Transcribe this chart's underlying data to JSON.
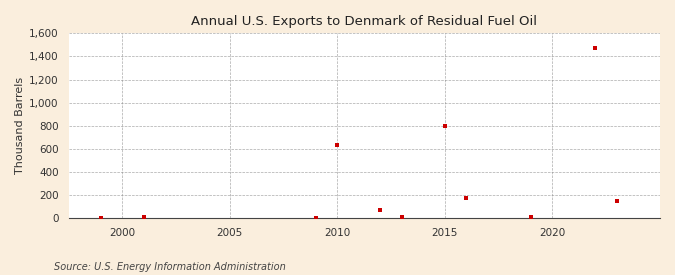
{
  "title": "Annual U.S. Exports to Denmark of Residual Fuel Oil",
  "ylabel": "Thousand Barrels",
  "source": "Source: U.S. Energy Information Administration",
  "background_color": "#faeedd",
  "plot_background_color": "#ffffff",
  "marker_color": "#cc0000",
  "marker_size": 6,
  "xlim": [
    1997.5,
    2025
  ],
  "ylim": [
    0,
    1600
  ],
  "yticks": [
    0,
    200,
    400,
    600,
    800,
    1000,
    1200,
    1400,
    1600
  ],
  "xticks": [
    2000,
    2005,
    2010,
    2015,
    2020
  ],
  "data": {
    "years": [
      1999,
      2001,
      2009,
      2010,
      2012,
      2013,
      2015,
      2016,
      2019,
      2022,
      2023
    ],
    "values": [
      5,
      10,
      5,
      630,
      75,
      8,
      800,
      175,
      10,
      1470,
      150
    ]
  }
}
